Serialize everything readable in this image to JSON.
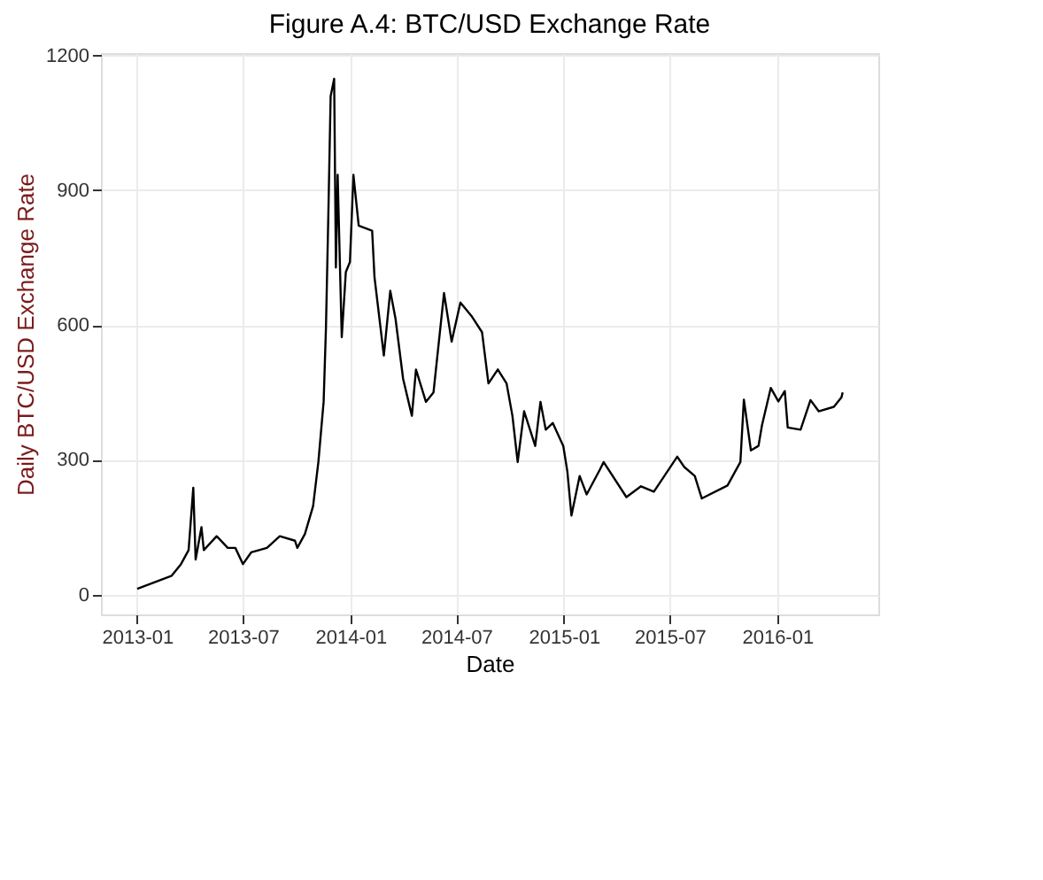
{
  "chart_data": {
    "type": "line",
    "title": "Figure A.4: BTC/USD Exchange Rate",
    "xlabel": "Date",
    "ylabel": "Daily BTC/USD Exchange Rate",
    "x": [
      "2013-01-01",
      "2013-03-01",
      "2013-03-17",
      "2013-03-30",
      "2013-04-07",
      "2013-04-11",
      "2013-04-21",
      "2013-04-25",
      "2013-05-17",
      "2013-06-05",
      "2013-06-18",
      "2013-07-01",
      "2013-07-15",
      "2013-08-11",
      "2013-09-02",
      "2013-09-28",
      "2013-10-02",
      "2013-10-15",
      "2013-10-29",
      "2013-11-07",
      "2013-11-16",
      "2013-11-20",
      "2013-11-24",
      "2013-11-28",
      "2013-12-04",
      "2013-12-07",
      "2013-12-10",
      "2013-12-17",
      "2013-12-24",
      "2013-12-31",
      "2014-01-06",
      "2014-01-15",
      "2014-02-07",
      "2014-02-11",
      "2014-02-27",
      "2014-03-10",
      "2014-03-19",
      "2014-04-01",
      "2014-04-16",
      "2014-04-23",
      "2014-05-10",
      "2014-05-23",
      "2014-06-10",
      "2014-06-23",
      "2014-07-08",
      "2014-07-27",
      "2014-08-14",
      "2014-08-25",
      "2014-09-10",
      "2014-09-25",
      "2014-10-05",
      "2014-10-14",
      "2014-10-25",
      "2014-11-13",
      "2014-11-22",
      "2014-12-01",
      "2014-12-13",
      "2014-12-31",
      "2015-01-07",
      "2015-01-14",
      "2015-01-28",
      "2015-02-09",
      "2015-03-04",
      "2015-03-10",
      "2015-04-18",
      "2015-05-13",
      "2015-06-04",
      "2015-07-14",
      "2015-07-26",
      "2015-08-13",
      "2015-08-25",
      "2015-10-08",
      "2015-10-30",
      "2015-11-05",
      "2015-11-17",
      "2015-11-30",
      "2015-12-06",
      "2015-12-21",
      "2016-01-03",
      "2016-01-14",
      "2016-01-19",
      "2016-02-10",
      "2016-02-27",
      "2016-03-12",
      "2016-04-07",
      "2016-04-20",
      "2016-04-22"
    ],
    "series": [
      {
        "color": "#000000",
        "values": [
          13,
          42,
          68,
          99,
          238,
          78,
          150,
          99,
          130,
          104,
          104,
          68,
          94,
          104,
          130,
          120,
          104,
          135,
          197,
          295,
          429,
          594,
          841,
          1109,
          1148,
          728,
          934,
          573,
          718,
          740,
          934,
          821,
          810,
          707,
          532,
          676,
          614,
          480,
          398,
          501,
          429,
          450,
          671,
          563,
          650,
          620,
          584,
          470,
          501,
          470,
          398,
          295,
          408,
          331,
          429,
          367,
          382,
          331,
          274,
          176,
          264,
          223,
          279,
          295,
          217,
          241,
          229,
          307,
          284,
          264,
          214,
          243,
          295,
          434,
          321,
          331,
          377,
          460,
          430,
          453,
          372,
          367,
          433,
          408,
          418,
          439,
          450
        ]
      }
    ],
    "xlim": [
      "2012-10-31",
      "2016-06-22"
    ],
    "ylim": [
      -44,
      1205
    ],
    "xticks": [
      "2013-01",
      "2013-07",
      "2014-01",
      "2014-07",
      "2015-01",
      "2015-07",
      "2016-01"
    ],
    "yticks": [
      0,
      300,
      600,
      900,
      1200
    ],
    "grid": true,
    "marker": "none",
    "line_style": "solid"
  }
}
